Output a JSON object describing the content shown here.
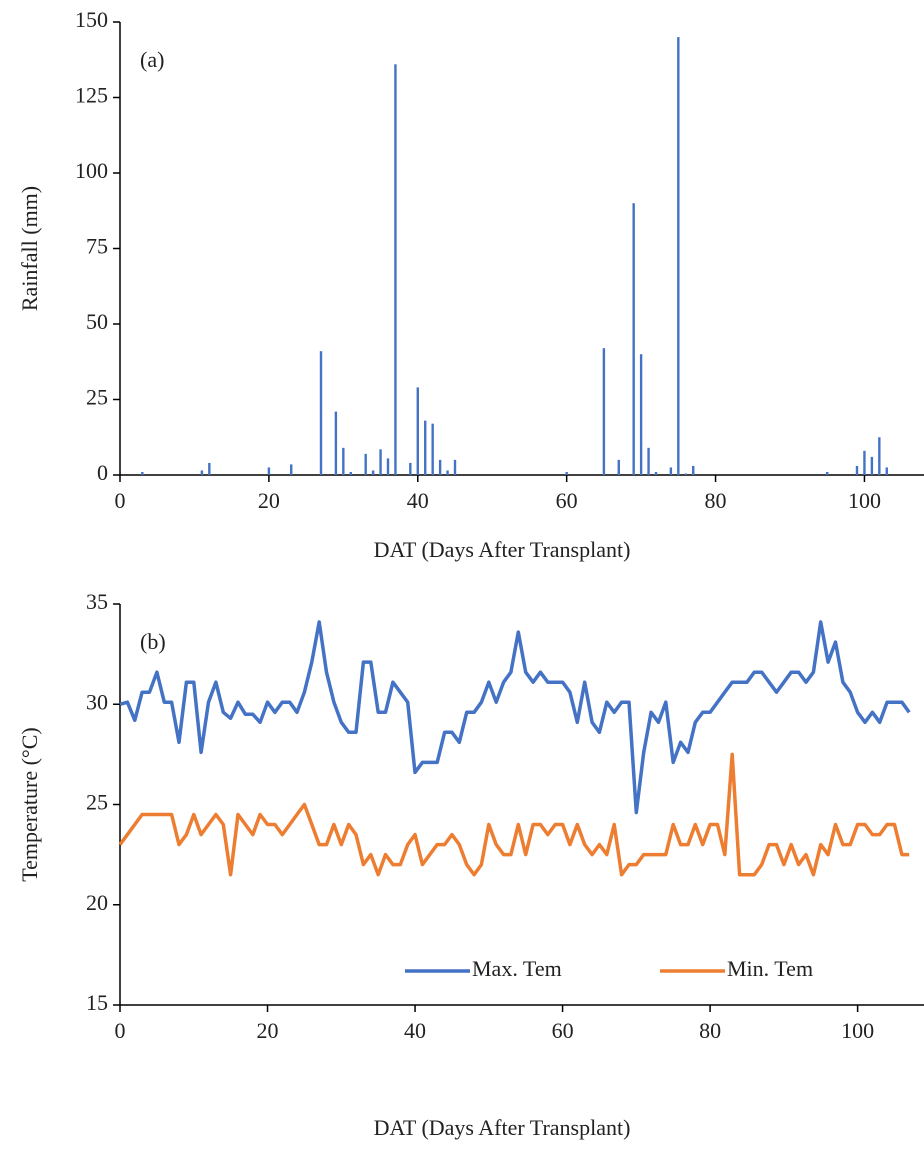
{
  "chart_data": [
    {
      "type": "bar",
      "annotation": "(a)",
      "x_label": "DAT (Days After Transplant)",
      "y_label": "Rainfall (mm)",
      "color": "#4472c4",
      "x": [
        3,
        11,
        12,
        20,
        23,
        27,
        29,
        30,
        31,
        33,
        34,
        35,
        36,
        37,
        39,
        40,
        41,
        42,
        43,
        44,
        45,
        60,
        65,
        67,
        69,
        70,
        71,
        72,
        74,
        75,
        76,
        77,
        95,
        99,
        100,
        101,
        102,
        103
      ],
      "values": [
        1,
        1.5,
        4,
        2.5,
        3.5,
        41,
        21,
        9,
        1,
        7,
        1.5,
        8.5,
        5.5,
        136,
        4,
        29,
        18,
        17,
        5,
        1.5,
        5,
        1,
        42,
        5,
        90,
        40,
        9,
        1,
        2.5,
        145,
        0.5,
        3,
        1,
        3,
        8,
        6,
        12.5,
        2.5
      ],
      "xlim": [
        0,
        108
      ],
      "xticks": [
        0,
        20,
        40,
        60,
        80,
        100
      ],
      "ylim": [
        0,
        150
      ],
      "yticks": [
        0,
        25,
        50,
        75,
        100,
        125,
        150
      ]
    },
    {
      "type": "line",
      "annotation": "(b)",
      "x_label": "DAT (Days After Transplant)",
      "y_label": "Temperature (°C)",
      "legend": "lower right",
      "x": [
        0,
        1,
        2,
        3,
        4,
        5,
        6,
        7,
        8,
        9,
        10,
        11,
        12,
        13,
        14,
        15,
        16,
        17,
        18,
        19,
        20,
        21,
        22,
        23,
        24,
        25,
        26,
        27,
        28,
        29,
        30,
        31,
        32,
        33,
        34,
        35,
        36,
        37,
        38,
        39,
        40,
        41,
        42,
        43,
        44,
        45,
        46,
        47,
        48,
        49,
        50,
        51,
        52,
        53,
        54,
        55,
        56,
        57,
        58,
        59,
        60,
        61,
        62,
        63,
        64,
        65,
        66,
        67,
        68,
        69,
        70,
        71,
        72,
        73,
        74,
        75,
        76,
        77,
        78,
        79,
        80,
        81,
        82,
        83,
        84,
        85,
        86,
        87,
        88,
        89,
        90,
        91,
        92,
        93,
        94,
        95,
        96,
        97,
        98,
        99,
        100,
        101,
        102,
        103,
        104,
        105,
        106,
        107
      ],
      "series": [
        {
          "name": "Max. Tem",
          "color": "#4472c4",
          "values": [
            30,
            30.1,
            29.2,
            30.6,
            30.6,
            31.6,
            30.1,
            30.1,
            28.1,
            31.1,
            31.1,
            27.6,
            30.1,
            31.1,
            29.6,
            29.3,
            30.1,
            29.5,
            29.5,
            29.1,
            30.1,
            29.6,
            30.1,
            30.1,
            29.6,
            30.6,
            32.1,
            34.1,
            31.6,
            30.1,
            29.1,
            28.6,
            28.6,
            32.1,
            32.1,
            29.6,
            29.6,
            31.1,
            30.6,
            30.1,
            26.6,
            27.1,
            27.1,
            27.1,
            28.6,
            28.6,
            28.1,
            29.6,
            29.6,
            30.1,
            31.1,
            30.1,
            31.1,
            31.6,
            33.6,
            31.6,
            31.1,
            31.6,
            31.1,
            31.1,
            31.1,
            30.6,
            29.1,
            31.1,
            29.1,
            28.6,
            30.1,
            29.6,
            30.1,
            30.1,
            24.6,
            27.6,
            29.6,
            29.1,
            30.1,
            27.1,
            28.1,
            27.6,
            29.1,
            29.6,
            29.6,
            30.1,
            30.6,
            31.1,
            31.1,
            31.1,
            31.6,
            31.6,
            31.1,
            30.6,
            31.1,
            31.6,
            31.6,
            31.1,
            31.6,
            34.1,
            32.1,
            33.1,
            31.1,
            30.6,
            29.6,
            29.1,
            29.6,
            29.1,
            30.1,
            30.1,
            30.1,
            29.6
          ]
        },
        {
          "name": "Min. Tem",
          "color": "#ed7d31",
          "values": [
            23,
            23.5,
            24,
            24.5,
            24.5,
            24.5,
            24.5,
            24.5,
            23,
            23.5,
            24.5,
            23.5,
            24,
            24.5,
            24,
            21.5,
            24.5,
            24,
            23.5,
            24.5,
            24,
            24,
            23.5,
            24,
            24.5,
            25,
            24,
            23,
            23,
            24,
            23,
            24,
            23.5,
            22,
            22.5,
            21.5,
            22.5,
            22,
            22,
            23,
            23.5,
            22,
            22.5,
            23,
            23,
            23.5,
            23,
            22,
            21.5,
            22,
            24,
            23,
            22.5,
            22.5,
            24,
            22.5,
            24,
            24,
            23.5,
            24,
            24,
            23,
            24,
            23,
            22.5,
            23,
            22.5,
            24,
            21.5,
            22,
            22,
            22.5,
            22.5,
            22.5,
            22.5,
            24,
            23,
            23,
            24,
            23,
            24,
            24,
            22.5,
            27.5,
            21.5,
            21.5,
            21.5,
            22,
            23,
            23,
            22,
            23,
            22,
            22.5,
            21.5,
            23,
            22.5,
            24,
            23,
            23,
            24,
            24,
            23.5,
            23.5,
            24,
            24,
            22.5,
            22.5
          ]
        }
      ],
      "xlim": [
        0,
        109
      ],
      "xticks": [
        0,
        20,
        40,
        60,
        80,
        100
      ],
      "ylim": [
        15,
        35
      ],
      "yticks": [
        15,
        20,
        25,
        30,
        35
      ]
    }
  ]
}
